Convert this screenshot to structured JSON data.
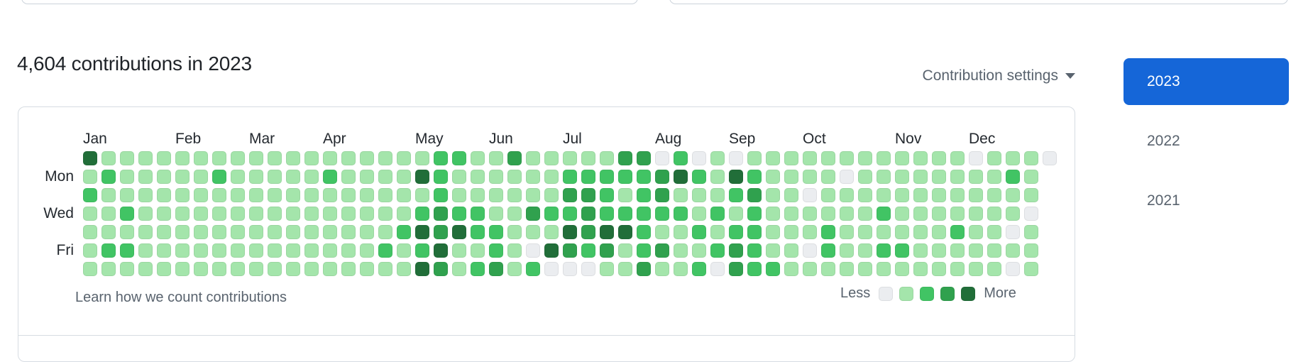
{
  "header": {
    "title": "4,604 contributions in 2023",
    "settings_label": "Contribution settings"
  },
  "years": [
    {
      "label": "2023",
      "active": true
    },
    {
      "label": "2022",
      "active": false
    },
    {
      "label": "2021",
      "active": false
    }
  ],
  "graph": {
    "months": [
      {
        "label": "Jan",
        "col": 1
      },
      {
        "label": "Feb",
        "col": 6
      },
      {
        "label": "Mar",
        "col": 10
      },
      {
        "label": "Apr",
        "col": 14
      },
      {
        "label": "May",
        "col": 19
      },
      {
        "label": "Jun",
        "col": 23
      },
      {
        "label": "Jul",
        "col": 27
      },
      {
        "label": "Aug",
        "col": 32
      },
      {
        "label": "Sep",
        "col": 36
      },
      {
        "label": "Oct",
        "col": 40
      },
      {
        "label": "Nov",
        "col": 45
      },
      {
        "label": "Dec",
        "col": 49
      }
    ],
    "day_labels": [
      {
        "label": "Mon",
        "row": 2
      },
      {
        "label": "Wed",
        "row": 4
      },
      {
        "label": "Fri",
        "row": 6
      }
    ],
    "weeks": [
      "4121111",
      "1211121",
      "1112121",
      "1111111",
      "1111111",
      "1111111",
      "1111111",
      "1211111",
      "1111111",
      "1111111",
      "1111111",
      "1111111",
      "1111111",
      "1211111",
      "1111111",
      "1111111",
      "1111121",
      "1111211",
      "1412424",
      "2223343",
      "2112411",
      "1112212",
      "1111223",
      "3111111",
      "1113102",
      "1112140",
      "1232430",
      "1233320",
      "1222431",
      "3212411",
      "3222223",
      "0332131",
      "2412111",
      "0211212",
      "1112120",
      "0421233",
      "1232222",
      "1111112",
      "1111111",
      "1101101",
      "1111221",
      "1011111",
      "1111111",
      "1112121",
      "1111121",
      "1111111",
      "1111111",
      "1111211",
      "0111111",
      "1111111",
      "1211010",
      "1110111",
      "0"
    ],
    "legend": {
      "less": "Less",
      "more": "More"
    },
    "footer_link": "Learn how we count contributions"
  },
  "colors": {
    "levels": [
      "#ebedf0",
      "#a4e5ab",
      "#41c464",
      "#30a14e",
      "#216e39"
    ],
    "accent_blue": "#1566d8"
  }
}
